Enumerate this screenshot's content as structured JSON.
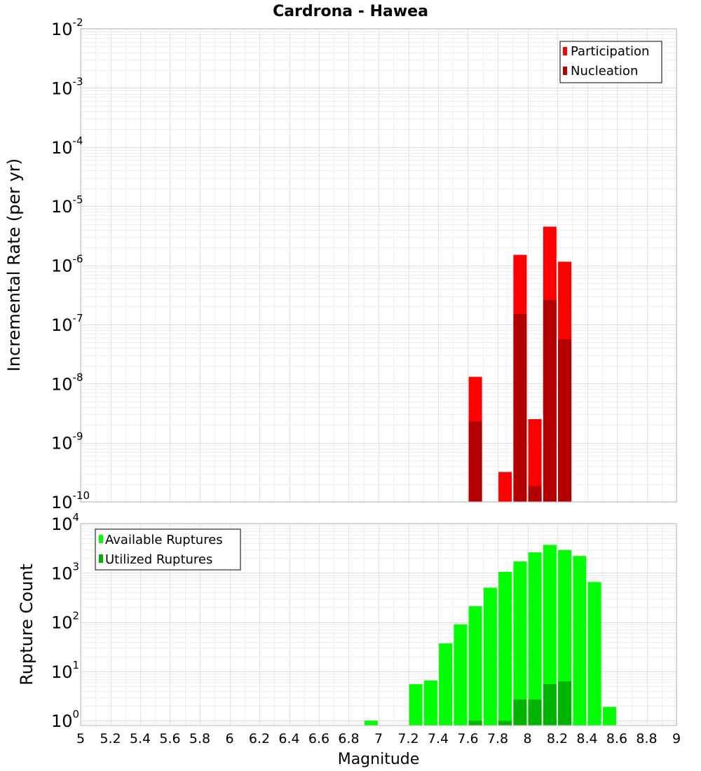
{
  "chart_data": [
    {
      "type": "bar",
      "title": "Cardrona - Hawea",
      "ylabel": "Incremental Rate (per yr)",
      "yscale": "log",
      "ylim": [
        1e-10,
        0.01
      ],
      "ytick_base": "10",
      "ytick_exponents": [
        "-10",
        "-9",
        "-8",
        "-7",
        "-6",
        "-5",
        "-4",
        "-3",
        "-2"
      ],
      "xlim": [
        5,
        9
      ],
      "legend": {
        "location": "top-right",
        "items": [
          {
            "label": "Participation",
            "color": "#ff0000"
          },
          {
            "label": "Nucleation",
            "color": "#b30000"
          }
        ]
      },
      "series": [
        {
          "name": "Participation",
          "color": "#ff0000",
          "x": [
            7.65,
            7.85,
            7.95,
            8.05,
            8.15,
            8.25
          ],
          "values": [
            1.3e-08,
            3.2e-10,
            1.5e-06,
            2.5e-09,
            4.5e-06,
            1.15e-06
          ]
        },
        {
          "name": "Nucleation",
          "color": "#b30000",
          "x": [
            7.65,
            7.95,
            8.05,
            8.15,
            8.25
          ],
          "values": [
            2.3e-09,
            1.5e-07,
            1.85e-10,
            2.6e-07,
            5.6e-08
          ]
        }
      ]
    },
    {
      "type": "bar",
      "title": "",
      "ylabel": "Rupture Count",
      "xlabel": "Magnitude",
      "yscale": "log",
      "ylim": [
        0.8,
        10000
      ],
      "ytick_base": "10",
      "ytick_exponents": [
        "0",
        "1",
        "2",
        "3",
        "4"
      ],
      "xlim": [
        5,
        9
      ],
      "xticks": [
        "5",
        "5.2",
        "5.4",
        "5.6",
        "5.8",
        "6",
        "6.2",
        "6.4",
        "6.6",
        "6.8",
        "7",
        "7.2",
        "7.4",
        "7.6",
        "7.8",
        "8",
        "8.2",
        "8.4",
        "8.6",
        "8.8",
        "9"
      ],
      "legend": {
        "location": "top-left",
        "items": [
          {
            "label": "Available Ruptures",
            "color": "#00ff00"
          },
          {
            "label": "Utilized Ruptures",
            "color": "#00b300"
          }
        ]
      },
      "series": [
        {
          "name": "Available Ruptures",
          "color": "#00ff00",
          "x": [
            6.95,
            7.25,
            7.35,
            7.45,
            7.55,
            7.65,
            7.75,
            7.85,
            7.95,
            8.05,
            8.15,
            8.25,
            8.35,
            8.45,
            8.55
          ],
          "values": [
            1,
            5.5,
            6.5,
            37,
            90,
            210,
            500,
            1050,
            1700,
            2600,
            3700,
            2900,
            2200,
            650,
            1.9
          ]
        },
        {
          "name": "Utilized Ruptures",
          "color": "#00b300",
          "x": [
            7.65,
            7.85,
            7.95,
            8.05,
            8.15,
            8.25
          ],
          "values": [
            1,
            1,
            2.7,
            2.7,
            5.5,
            6.3
          ]
        }
      ]
    }
  ]
}
